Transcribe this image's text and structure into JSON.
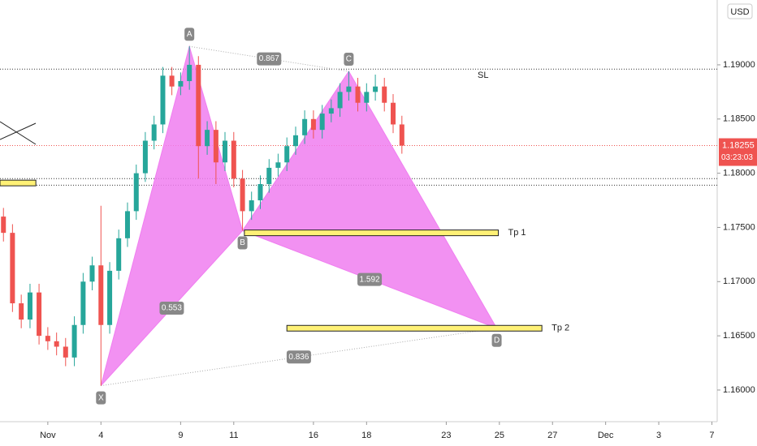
{
  "chart_data": {
    "type": "candlestick",
    "currency": "USD",
    "up_color": "#26a69a",
    "down_color": "#ef5350",
    "x": [
      -1.67,
      -1.33,
      -1,
      -0.67,
      -0.33,
      0,
      0.33,
      0.67,
      1,
      1.33,
      1.67,
      2,
      2.33,
      2.67,
      3,
      3.33,
      3.67,
      4,
      4.33,
      4.67,
      5,
      5.33,
      5.67,
      6,
      6.33,
      6.67,
      7,
      7.33,
      7.67,
      8,
      8.33,
      8.67,
      9,
      9.33,
      9.67,
      10,
      10.33,
      10.67,
      11,
      11.33,
      11.67,
      12,
      12.33,
      12.67,
      13,
      13.33
    ],
    "open": [
      1.176,
      1.1745,
      1.168,
      1.1665,
      1.169,
      1.165,
      1.1645,
      1.164,
      1.163,
      1.166,
      1.17,
      1.1715,
      1.166,
      1.171,
      1.174,
      1.1765,
      1.18,
      1.183,
      1.1845,
      1.189,
      1.188,
      1.1885,
      1.19,
      1.1825,
      1.184,
      1.181,
      1.183,
      1.1795,
      1.1765,
      1.1775,
      1.179,
      1.1805,
      1.181,
      1.1825,
      1.1835,
      1.185,
      1.184,
      1.1855,
      1.186,
      1.1875,
      1.188,
      1.1865,
      1.1875,
      1.188,
      1.1865,
      1.1845
    ],
    "high": [
      1.1768,
      1.1753,
      1.1688,
      1.1698,
      1.1698,
      1.1658,
      1.1653,
      1.1648,
      1.1668,
      1.1708,
      1.1723,
      1.177,
      1.1718,
      1.1748,
      1.1773,
      1.1808,
      1.1838,
      1.1853,
      1.1898,
      1.1898,
      1.1893,
      1.1917,
      1.1908,
      1.1848,
      1.1848,
      1.1838,
      1.1838,
      1.1803,
      1.1783,
      1.1798,
      1.1813,
      1.1818,
      1.1833,
      1.1843,
      1.1858,
      1.1858,
      1.1863,
      1.1868,
      1.1883,
      1.1894,
      1.1888,
      1.1883,
      1.1891,
      1.1888,
      1.1873,
      1.1853
    ],
    "low": [
      1.1737,
      1.1672,
      1.1657,
      1.1657,
      1.1642,
      1.1637,
      1.1632,
      1.1622,
      1.1622,
      1.1652,
      1.1692,
      1.1604,
      1.1652,
      1.1702,
      1.1732,
      1.1757,
      1.1792,
      1.1822,
      1.1837,
      1.1872,
      1.1872,
      1.1877,
      1.1795,
      1.1817,
      1.179,
      1.1802,
      1.1787,
      1.1747,
      1.1757,
      1.1767,
      1.1782,
      1.1797,
      1.1802,
      1.1817,
      1.1827,
      1.1832,
      1.1832,
      1.1847,
      1.1852,
      1.1867,
      1.1857,
      1.1857,
      1.1867,
      1.1857,
      1.1837,
      1.1818
    ],
    "close": [
      1.1745,
      1.168,
      1.1665,
      1.169,
      1.165,
      1.1645,
      1.164,
      1.163,
      1.166,
      1.17,
      1.1715,
      1.166,
      1.171,
      1.174,
      1.1765,
      1.18,
      1.183,
      1.1845,
      1.189,
      1.188,
      1.1885,
      1.19,
      1.1825,
      1.184,
      1.181,
      1.183,
      1.1795,
      1.1765,
      1.1775,
      1.179,
      1.1805,
      1.181,
      1.1825,
      1.1835,
      1.185,
      1.184,
      1.1855,
      1.186,
      1.1875,
      1.188,
      1.1865,
      1.1875,
      1.188,
      1.1865,
      1.1845,
      1.18255
    ],
    "xlim": [
      -1.8,
      25.2
    ],
    "ylim": [
      1.15708,
      1.19598
    ],
    "xticks": [
      {
        "value": 0,
        "label": "Nov"
      },
      {
        "value": 2,
        "label": "4"
      },
      {
        "value": 5,
        "label": "9"
      },
      {
        "value": 7,
        "label": "11"
      },
      {
        "value": 10,
        "label": "16"
      },
      {
        "value": 12,
        "label": "18"
      },
      {
        "value": 15,
        "label": "23"
      },
      {
        "value": 17,
        "label": "25"
      },
      {
        "value": 19,
        "label": "27"
      },
      {
        "value": 21,
        "label": "Dec"
      },
      {
        "value": 23,
        "label": "3"
      },
      {
        "value": 25,
        "label": "7"
      }
    ],
    "yticks": [
      {
        "value": 1.16,
        "label": "1.16000"
      },
      {
        "value": 1.165,
        "label": "1.16500"
      },
      {
        "value": 1.17,
        "label": "1.17000"
      },
      {
        "value": 1.175,
        "label": "1.17500"
      },
      {
        "value": 1.18,
        "label": "1.18000"
      },
      {
        "value": 1.185,
        "label": "1.18500"
      },
      {
        "value": 1.19,
        "label": "1.19000"
      }
    ],
    "last_price": 1.18255,
    "countdown": "03:23:03",
    "pattern": {
      "color": "#f07ef0",
      "points": [
        {
          "label": "X",
          "x": 2,
          "y": 1.1604
        },
        {
          "label": "A",
          "x": 5.33,
          "y": 1.1917
        },
        {
          "label": "B",
          "x": 7.33,
          "y": 1.1747
        },
        {
          "label": "C",
          "x": 11.33,
          "y": 1.1894
        },
        {
          "label": "D",
          "x": 16.9,
          "y": 1.1657
        }
      ],
      "ratios": [
        "0.867",
        "0.553",
        "1.592",
        "0.836"
      ]
    },
    "levels": [
      {
        "label": "SL",
        "value": 1.1896
      },
      {
        "value": 1.1795
      },
      {
        "value": 1.1789
      }
    ],
    "zones": [
      {
        "label": "Tp 1",
        "value": 1.1745,
        "x": [
          7.4,
          16.96
        ]
      },
      {
        "label": "Tp 2",
        "value": 1.1657,
        "x": [
          9.0,
          18.6
        ]
      },
      {
        "value": 1.1791,
        "x": [
          -1.8,
          -0.45
        ]
      }
    ]
  }
}
